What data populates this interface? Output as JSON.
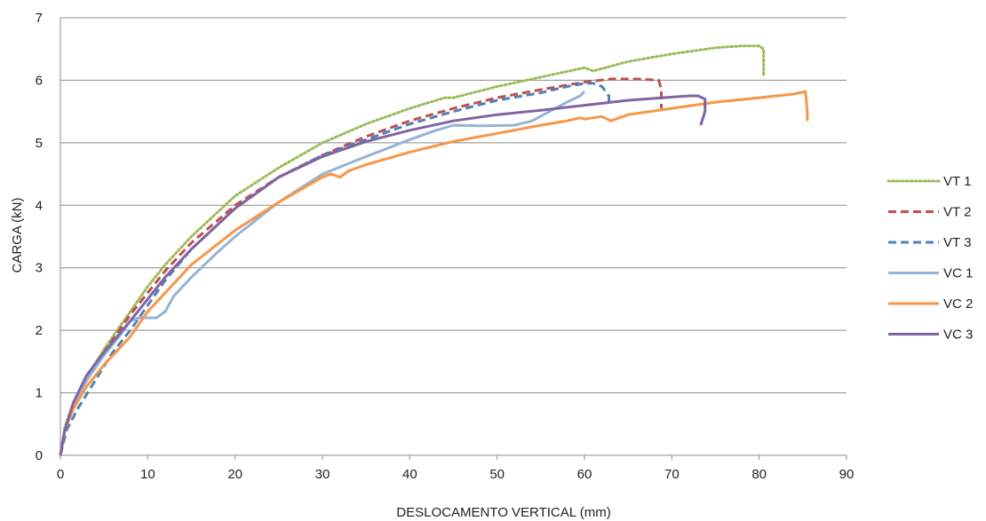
{
  "chart_data": {
    "type": "line",
    "title": "",
    "xlabel": "DESLOCAMENTO VERTICAL (mm)",
    "ylabel": "CARGA (kN)",
    "xlim": [
      0,
      90
    ],
    "ylim": [
      0,
      7
    ],
    "xticks": [
      "0",
      "10",
      "20",
      "30",
      "40",
      "50",
      "60",
      "70",
      "80",
      "90"
    ],
    "yticks": [
      "0",
      "1",
      "2",
      "3",
      "4",
      "5",
      "6",
      "7"
    ],
    "grid": "horizontal",
    "legend_position": "right",
    "series": [
      {
        "name": "VT 1",
        "color": "#9BBB59",
        "style": "dotted",
        "points": [
          [
            0,
            0
          ],
          [
            0.5,
            0.45
          ],
          [
            1.5,
            0.85
          ],
          [
            3,
            1.25
          ],
          [
            5,
            1.7
          ],
          [
            8,
            2.3
          ],
          [
            10,
            2.7
          ],
          [
            12,
            3.05
          ],
          [
            15,
            3.5
          ],
          [
            20,
            4.15
          ],
          [
            25,
            4.6
          ],
          [
            30,
            5.0
          ],
          [
            35,
            5.3
          ],
          [
            40,
            5.55
          ],
          [
            44,
            5.72
          ],
          [
            45,
            5.72
          ],
          [
            50,
            5.9
          ],
          [
            55,
            6.05
          ],
          [
            60,
            6.2
          ],
          [
            61,
            6.15
          ],
          [
            65,
            6.3
          ],
          [
            70,
            6.42
          ],
          [
            75,
            6.52
          ],
          [
            78,
            6.55
          ],
          [
            80,
            6.55
          ],
          [
            80.5,
            6.5
          ],
          [
            80.5,
            6.05
          ]
        ]
      },
      {
        "name": "VT 2",
        "color": "#C0504D",
        "style": "dashed",
        "points": [
          [
            0,
            0
          ],
          [
            0.5,
            0.4
          ],
          [
            1.5,
            0.8
          ],
          [
            3,
            1.2
          ],
          [
            5,
            1.65
          ],
          [
            8,
            2.25
          ],
          [
            10,
            2.6
          ],
          [
            12,
            2.95
          ],
          [
            15,
            3.4
          ],
          [
            20,
            4.0
          ],
          [
            25,
            4.45
          ],
          [
            30,
            4.8
          ],
          [
            35,
            5.1
          ],
          [
            40,
            5.35
          ],
          [
            45,
            5.55
          ],
          [
            50,
            5.72
          ],
          [
            55,
            5.85
          ],
          [
            60,
            5.97
          ],
          [
            63,
            6.02
          ],
          [
            66,
            6.02
          ],
          [
            68.5,
            6.0
          ],
          [
            68.8,
            5.85
          ],
          [
            68.8,
            5.55
          ]
        ]
      },
      {
        "name": "VT 3",
        "color": "#4F81BD",
        "style": "dashed",
        "points": [
          [
            0,
            0
          ],
          [
            0.7,
            0.4
          ],
          [
            2,
            0.75
          ],
          [
            4,
            1.2
          ],
          [
            6,
            1.65
          ],
          [
            8,
            2.0
          ],
          [
            10,
            2.4
          ],
          [
            12,
            2.8
          ],
          [
            15,
            3.3
          ],
          [
            20,
            3.95
          ],
          [
            25,
            4.45
          ],
          [
            30,
            4.8
          ],
          [
            35,
            5.05
          ],
          [
            40,
            5.3
          ],
          [
            45,
            5.5
          ],
          [
            50,
            5.68
          ],
          [
            55,
            5.8
          ],
          [
            58,
            5.9
          ],
          [
            60,
            5.95
          ],
          [
            61,
            5.95
          ],
          [
            62,
            5.9
          ],
          [
            62.8,
            5.75
          ],
          [
            62.8,
            5.6
          ]
        ]
      },
      {
        "name": "VC 1",
        "color": "#95B3D7",
        "style": "solid",
        "points": [
          [
            0,
            0
          ],
          [
            0.5,
            0.4
          ],
          [
            1.5,
            0.8
          ],
          [
            3,
            1.2
          ],
          [
            5,
            1.6
          ],
          [
            7,
            1.95
          ],
          [
            8,
            2.15
          ],
          [
            9,
            2.2
          ],
          [
            11,
            2.2
          ],
          [
            12,
            2.3
          ],
          [
            13,
            2.55
          ],
          [
            15,
            2.85
          ],
          [
            18,
            3.25
          ],
          [
            20,
            3.5
          ],
          [
            25,
            4.05
          ],
          [
            30,
            4.5
          ],
          [
            35,
            4.78
          ],
          [
            40,
            5.05
          ],
          [
            43,
            5.2
          ],
          [
            45,
            5.28
          ],
          [
            48,
            5.27
          ],
          [
            52,
            5.28
          ],
          [
            54,
            5.35
          ],
          [
            56,
            5.5
          ],
          [
            58,
            5.65
          ],
          [
            59.5,
            5.75
          ],
          [
            60,
            5.82
          ]
        ]
      },
      {
        "name": "VC 2",
        "color": "#F79646",
        "style": "solid",
        "points": [
          [
            0,
            0
          ],
          [
            0.5,
            0.4
          ],
          [
            1.5,
            0.75
          ],
          [
            3,
            1.1
          ],
          [
            5,
            1.45
          ],
          [
            8,
            1.9
          ],
          [
            10,
            2.3
          ],
          [
            12,
            2.6
          ],
          [
            15,
            3.05
          ],
          [
            20,
            3.6
          ],
          [
            25,
            4.05
          ],
          [
            30,
            4.45
          ],
          [
            31,
            4.5
          ],
          [
            32,
            4.45
          ],
          [
            33,
            4.55
          ],
          [
            35,
            4.65
          ],
          [
            40,
            4.85
          ],
          [
            45,
            5.02
          ],
          [
            50,
            5.15
          ],
          [
            55,
            5.28
          ],
          [
            58,
            5.35
          ],
          [
            59.5,
            5.4
          ],
          [
            60,
            5.38
          ],
          [
            61,
            5.4
          ],
          [
            62,
            5.42
          ],
          [
            63,
            5.35
          ],
          [
            65,
            5.45
          ],
          [
            70,
            5.55
          ],
          [
            75,
            5.65
          ],
          [
            80,
            5.72
          ],
          [
            84,
            5.78
          ],
          [
            85.3,
            5.82
          ],
          [
            85.5,
            5.5
          ],
          [
            85.5,
            5.35
          ]
        ]
      },
      {
        "name": "VC 3",
        "color": "#8064A2",
        "style": "solid",
        "points": [
          [
            0,
            0
          ],
          [
            0.5,
            0.4
          ],
          [
            1.5,
            0.85
          ],
          [
            3,
            1.28
          ],
          [
            5,
            1.65
          ],
          [
            8,
            2.15
          ],
          [
            10,
            2.5
          ],
          [
            12,
            2.85
          ],
          [
            15,
            3.3
          ],
          [
            20,
            3.95
          ],
          [
            25,
            4.45
          ],
          [
            30,
            4.78
          ],
          [
            35,
            5.02
          ],
          [
            40,
            5.2
          ],
          [
            45,
            5.35
          ],
          [
            50,
            5.45
          ],
          [
            55,
            5.52
          ],
          [
            60,
            5.6
          ],
          [
            65,
            5.68
          ],
          [
            70,
            5.73
          ],
          [
            72,
            5.75
          ],
          [
            73,
            5.75
          ],
          [
            73.8,
            5.7
          ],
          [
            73.8,
            5.5
          ],
          [
            73.3,
            5.28
          ]
        ]
      }
    ]
  }
}
